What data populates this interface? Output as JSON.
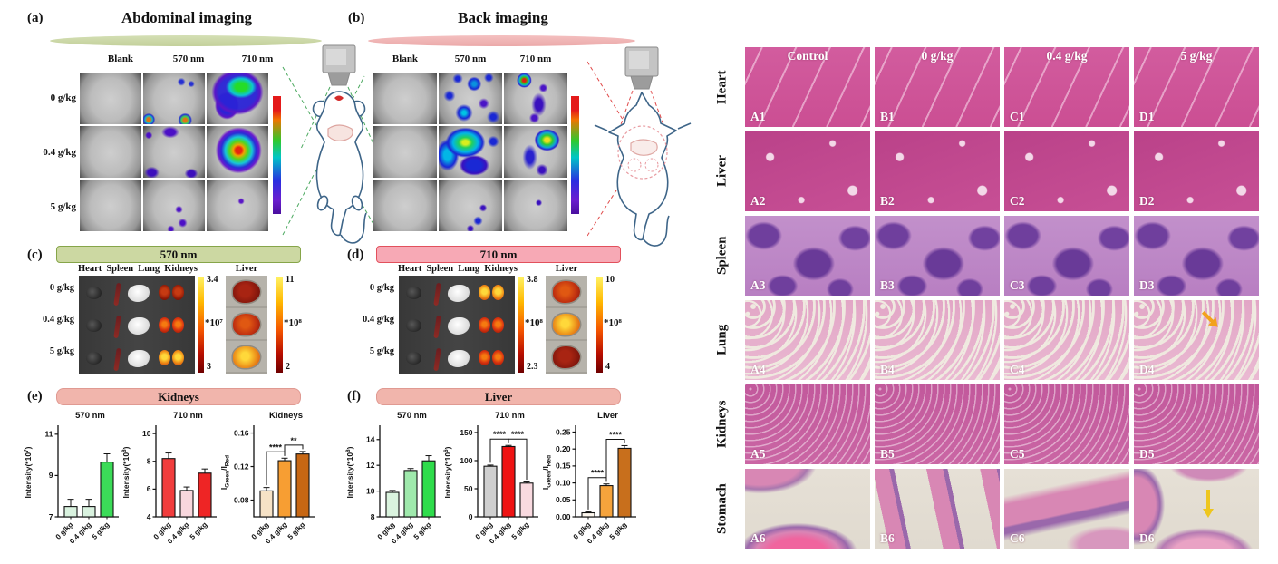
{
  "colors": {
    "panel_ab_green_bar": "#c3d09b",
    "panel_ab_pink_bar": "#eba9a9",
    "panel_c_header_fill": "#ccd8a2",
    "panel_d_header_fill": "#f7a9b5",
    "panel_ef_header_fill": "#f1b5ac",
    "arrow_orange": "#f2a21c",
    "arrow_yellow": "#eec61e"
  },
  "panel_a": {
    "tag": "(a)",
    "title": "Abdominal imaging",
    "col_labels": [
      "Blank",
      "570 nm",
      "710 nm"
    ],
    "row_labels": [
      "0 g/kg",
      "0.4 g/kg",
      "5 g/kg"
    ]
  },
  "panel_b": {
    "tag": "(b)",
    "title": "Back imaging",
    "col_labels": [
      "Blank",
      "570 nm",
      "710 nm"
    ]
  },
  "panel_c": {
    "tag": "(c)",
    "title": "570 nm",
    "organ_headers": [
      "Heart",
      "Spleen",
      "Lung",
      "Kidneys"
    ],
    "liver_header": "Liver",
    "row_labels": [
      "0 g/kg",
      "0.4 g/kg",
      "5 g/kg"
    ],
    "scale1": {
      "top": "3.4",
      "factor": "*10⁷",
      "bottom": "3"
    },
    "scale2": {
      "top": "11",
      "factor": "*10⁸",
      "bottom": "2"
    }
  },
  "panel_d": {
    "tag": "(d)",
    "title": "710 nm",
    "organ_headers": [
      "Heart",
      "Spleen",
      "Lung",
      "Kidneys"
    ],
    "liver_header": "Liver",
    "row_labels": [
      "0 g/kg",
      "0.4 g/kg",
      "5 g/kg"
    ],
    "scale1": {
      "top": "3.8",
      "factor": "*10⁸",
      "bottom": "2.3"
    },
    "scale2": {
      "top": "10",
      "factor": "*10⁸",
      "bottom": "4"
    }
  },
  "panel_e": {
    "tag": "(e)",
    "title": "Kidneys"
  },
  "panel_f": {
    "tag": "(f)",
    "title": "Liver"
  },
  "histology": {
    "col_headers": [
      "Control",
      "0 g/kg",
      "0.4 g/kg",
      "5 g/kg"
    ],
    "row_labels": [
      "Heart",
      "Liver",
      "Spleen",
      "Lung",
      "Kidneys",
      "Stomach"
    ],
    "cell_ids": [
      [
        "A1",
        "B1",
        "C1",
        "D1"
      ],
      [
        "A2",
        "B2",
        "C2",
        "D2"
      ],
      [
        "A3",
        "B3",
        "C3",
        "D3"
      ],
      [
        "A4",
        "B4",
        "C4",
        "D4"
      ],
      [
        "A5",
        "B5",
        "C5",
        "D5"
      ],
      [
        "A6",
        "B6",
        "C6",
        "D6"
      ]
    ]
  },
  "chart_data": [
    {
      "type": "bar",
      "panel": "e",
      "title": "570 nm",
      "ylabel": "Intensity(*10^7^)",
      "categories": [
        "0 g/kg",
        "0.4 g/kg",
        "5 g/kg"
      ],
      "values": [
        7.5,
        7.5,
        9.65
      ],
      "errors": [
        0.35,
        0.35,
        0.4
      ],
      "ylim": [
        7,
        11.3
      ],
      "yticks": [
        7,
        9,
        11
      ],
      "ytick_labels": [
        "7",
        "9",
        "11"
      ],
      "bar_colors": [
        "#d9f2df",
        "#d9f2df",
        "#3bdb58"
      ],
      "significance": []
    },
    {
      "type": "bar",
      "panel": "e",
      "title": "710 nm",
      "ylabel": "Intensity(*10^8^)",
      "categories": [
        "0 g/kg",
        "0.4 g/kg",
        "5 g/kg"
      ],
      "values": [
        8.2,
        5.9,
        7.15
      ],
      "errors": [
        0.4,
        0.25,
        0.3
      ],
      "ylim": [
        4,
        10.4
      ],
      "yticks": [
        4,
        6,
        8,
        10
      ],
      "ytick_labels": [
        "4",
        "6",
        "8",
        "10"
      ],
      "bar_colors": [
        "#f13d3d",
        "#f8d7dd",
        "#ee2525"
      ],
      "significance": []
    },
    {
      "type": "bar",
      "panel": "e",
      "title": "Kidneys",
      "ylabel": "I~Green~/I~Red~",
      "categories": [
        "0 g/kg",
        "0.4 g/kg",
        "5 g/kg"
      ],
      "values": [
        0.091,
        0.127,
        0.135
      ],
      "errors": [
        0.004,
        0.003,
        0.003
      ],
      "ylim": [
        0.06,
        0.166
      ],
      "yticks": [
        0.08,
        0.12,
        0.16
      ],
      "ytick_labels": [
        "0.08",
        "0.12",
        "0.16"
      ],
      "bar_colors": [
        "#f6e2c6",
        "#f79e33",
        "#c76714"
      ],
      "significance": [
        {
          "pair": [
            0,
            1
          ],
          "label": "****"
        },
        {
          "pair": [
            1,
            2
          ],
          "label": "**"
        }
      ]
    },
    {
      "type": "bar",
      "panel": "f",
      "title": "570 nm",
      "ylabel": "Intensity(*10^8^)",
      "categories": [
        "0 g/kg",
        "0.4 g/kg",
        "5 g/kg"
      ],
      "values": [
        9.9,
        11.6,
        12.35
      ],
      "errors": [
        0.15,
        0.15,
        0.4
      ],
      "ylim": [
        8,
        14.9
      ],
      "yticks": [
        8,
        10,
        12,
        14
      ],
      "ytick_labels": [
        "8",
        "10",
        "12",
        "14"
      ],
      "bar_colors": [
        "#daf3de",
        "#9fe9ac",
        "#2edc4b"
      ],
      "significance": []
    },
    {
      "type": "bar",
      "panel": "f",
      "title": "710 nm",
      "ylabel": "Intensity(*10^6^)",
      "categories": [
        "0 g/kg",
        "0.4 g/kg",
        "5 g/kg"
      ],
      "values": [
        90,
        125,
        60
      ],
      "errors": [
        2,
        2,
        2
      ],
      "ylim": [
        0,
        158
      ],
      "yticks": [
        0,
        50,
        100,
        150
      ],
      "ytick_labels": [
        "0",
        "50",
        "100",
        "150"
      ],
      "bar_colors": [
        "#cfcfcf",
        "#ee1313",
        "#f9dae0"
      ],
      "significance": [
        {
          "pair": [
            0,
            1
          ],
          "label": "****"
        },
        {
          "pair": [
            1,
            2
          ],
          "label": "****"
        }
      ]
    },
    {
      "type": "bar",
      "panel": "f",
      "title": "Liver",
      "ylabel": "I~Green~/I~Red~",
      "categories": [
        "0 g/kg",
        "0.4 g/kg",
        "5 g/kg"
      ],
      "values": [
        0.012,
        0.092,
        0.202
      ],
      "errors": [
        0.003,
        0.005,
        0.008
      ],
      "ylim": [
        0,
        0.262
      ],
      "yticks": [
        0,
        0.05,
        0.1,
        0.15,
        0.2,
        0.25
      ],
      "ytick_labels": [
        "0.00",
        "0.05",
        "0.10",
        "0.15",
        "0.20",
        "0.25"
      ],
      "bar_colors": [
        "#fdf7ee",
        "#f5a33c",
        "#c86f1c"
      ],
      "significance": [
        {
          "pair": [
            0,
            1
          ],
          "label": "****"
        },
        {
          "pair": [
            1,
            2
          ],
          "label": "****"
        }
      ]
    }
  ]
}
